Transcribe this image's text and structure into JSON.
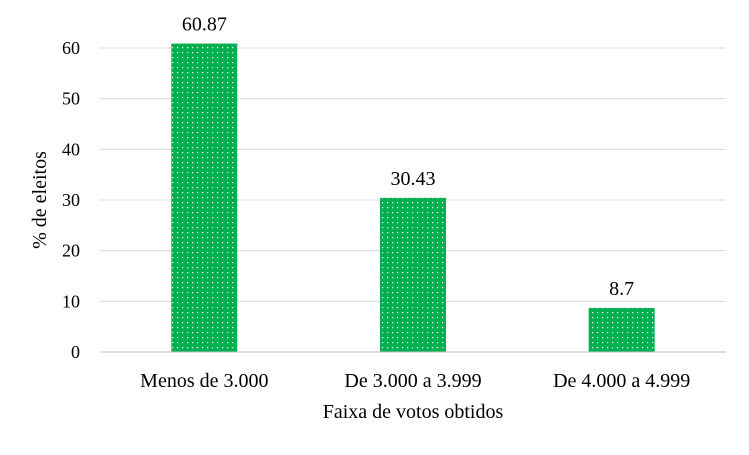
{
  "chart_data": {
    "type": "bar",
    "categories": [
      "Menos de 3.000",
      "De 3.000 a 3.999",
      "De 4.000 a 4.999"
    ],
    "values": [
      60.87,
      30.43,
      8.7
    ],
    "data_labels": [
      "60.87",
      "30.43",
      "8.7"
    ],
    "title": "",
    "xlabel": "Faixa de votos obtidos",
    "ylabel": "% de eleitos",
    "ylim": [
      0,
      60
    ],
    "yticks": [
      0,
      10,
      20,
      30,
      40,
      50,
      60
    ],
    "grid": true,
    "legend": "none",
    "bar_color": "#00b050",
    "bar_pattern": "dotted-white"
  }
}
